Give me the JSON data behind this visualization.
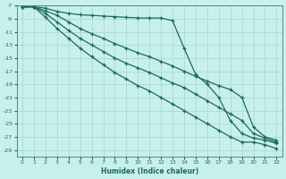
{
  "xlabel": "Humidex (Indice chaleur)",
  "ylabel": "",
  "bg_color": "#c8f0ea",
  "grid_color": "#b0dcd6",
  "line_color": "#1a6b5a",
  "xlim": [
    -0.5,
    22.5
  ],
  "ylim": [
    -30,
    -7
  ],
  "xticks": [
    0,
    1,
    2,
    3,
    4,
    5,
    6,
    7,
    8,
    9,
    10,
    11,
    12,
    13,
    14,
    15,
    16,
    17,
    18,
    19,
    20,
    21,
    22
  ],
  "yticks": [
    -7,
    -9,
    -11,
    -13,
    -15,
    -17,
    -19,
    -21,
    -23,
    -25,
    -27,
    -29
  ],
  "lines": [
    {
      "x": [
        0,
        1,
        2,
        3,
        4,
        5,
        6,
        7,
        8,
        9,
        10,
        11,
        12,
        13,
        14,
        15,
        16,
        17,
        18,
        19,
        20,
        21,
        22
      ],
      "y": [
        -7.2,
        -7.2,
        -7.4,
        -7.9,
        -8.2,
        -8.4,
        -8.5,
        -8.6,
        -8.7,
        -8.8,
        -8.9,
        -8.9,
        -8.9,
        -9.3,
        -13.5,
        -17.5,
        -19.0,
        -21.0,
        -24.5,
        -26.5,
        -27.2,
        -27.5,
        -28.0
      ]
    },
    {
      "x": [
        0,
        1,
        2,
        3,
        4,
        5,
        6,
        7,
        8,
        9,
        10,
        11,
        12,
        13,
        14,
        15,
        16,
        17,
        18,
        19,
        20,
        21,
        22
      ],
      "y": [
        -7.2,
        -7.2,
        -7.8,
        -8.5,
        -9.5,
        -10.5,
        -11.3,
        -12.0,
        -12.8,
        -13.5,
        -14.2,
        -14.8,
        -15.5,
        -16.2,
        -17.0,
        -17.8,
        -18.5,
        -19.2,
        -19.8,
        -21.0,
        -25.5,
        -27.0,
        -27.5
      ]
    },
    {
      "x": [
        0,
        1,
        2,
        3,
        4,
        5,
        6,
        7,
        8,
        9,
        10,
        11,
        12,
        13,
        14,
        15,
        16,
        17,
        18,
        19,
        20,
        21,
        22
      ],
      "y": [
        -7.2,
        -7.2,
        -8.2,
        -9.5,
        -10.8,
        -12.0,
        -13.0,
        -14.0,
        -15.0,
        -15.8,
        -16.5,
        -17.2,
        -18.0,
        -18.8,
        -19.5,
        -20.5,
        -21.5,
        -22.5,
        -23.5,
        -24.5,
        -26.5,
        -27.2,
        -27.8
      ]
    },
    {
      "x": [
        0,
        1,
        2,
        3,
        4,
        5,
        6,
        7,
        8,
        9,
        10,
        11,
        12,
        13,
        14,
        15,
        16,
        17,
        18,
        19,
        20,
        21,
        22
      ],
      "y": [
        -7.2,
        -7.2,
        -8.8,
        -10.5,
        -12.0,
        -13.5,
        -14.8,
        -16.0,
        -17.2,
        -18.2,
        -19.2,
        -20.0,
        -21.0,
        -22.0,
        -23.0,
        -24.0,
        -25.0,
        -26.0,
        -27.0,
        -27.8,
        -27.8,
        -28.2,
        -28.8
      ]
    }
  ]
}
